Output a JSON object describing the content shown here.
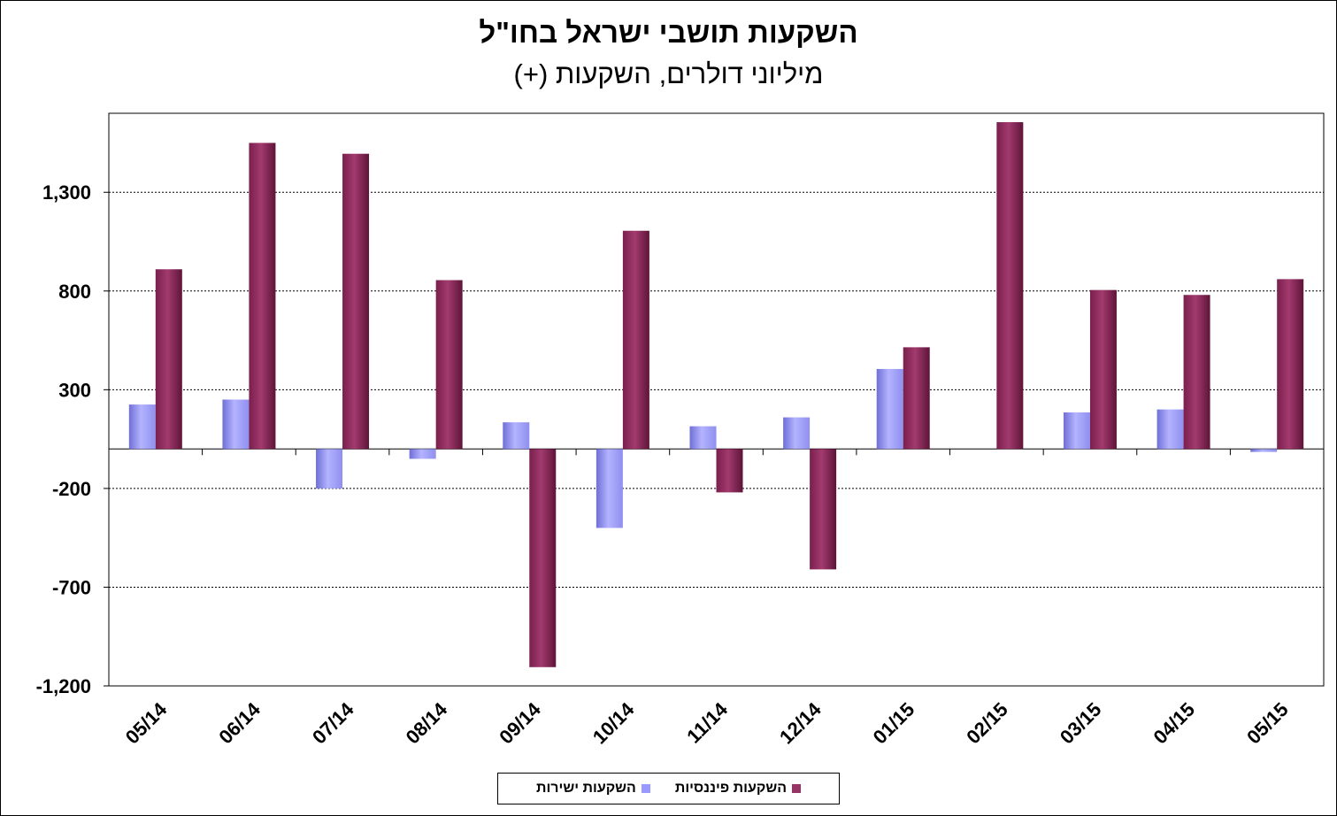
{
  "chart_data": {
    "type": "bar",
    "title": "השקעות תושבי ישראל בחו\"ל",
    "subtitle": "מיליוני דולרים, השקעות (+)",
    "categories": [
      "05/14",
      "06/14",
      "07/14",
      "08/14",
      "09/14",
      "10/14",
      "11/14",
      "12/14",
      "01/15",
      "02/15",
      "03/15",
      "04/15",
      "05/15"
    ],
    "series": [
      {
        "name": "השקעות ישירות",
        "color": "#9999ff",
        "values": [
          225,
          250,
          -200,
          -50,
          135,
          -400,
          115,
          160,
          405,
          0,
          185,
          200,
          -15
        ]
      },
      {
        "name": "השקעות פיננסיות",
        "color": "#993366",
        "values": [
          910,
          1550,
          1495,
          855,
          -1105,
          1105,
          -220,
          -610,
          515,
          1655,
          805,
          780,
          860
        ]
      }
    ],
    "yticks": [
      "1,300",
      "800",
      "300",
      "-200",
      "-700",
      "-1,200"
    ],
    "ytick_values": [
      1300,
      800,
      300,
      -200,
      -700,
      -1200
    ],
    "ylim": [
      -1200,
      1700
    ],
    "grid": true,
    "legend_position": "bottom"
  }
}
